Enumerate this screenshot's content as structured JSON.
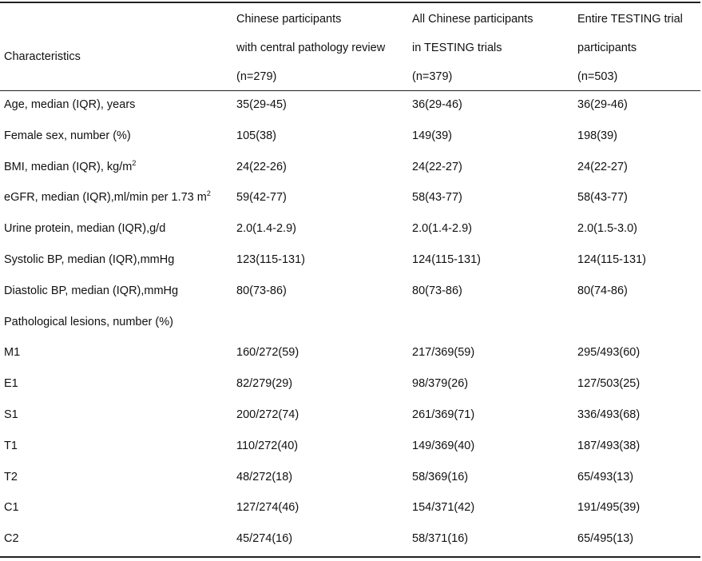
{
  "header": {
    "characteristics": "Characteristics",
    "col1": [
      "Chinese participants",
      "with central pathology review",
      "(n=279)"
    ],
    "col2": [
      "All Chinese participants",
      "in TESTING trials",
      "(n=379)"
    ],
    "col3": [
      "Entire TESTING trial",
      "participants",
      "(n=503)"
    ]
  },
  "rows": [
    {
      "label": "Age, median (IQR), years",
      "label_sup": "",
      "label_after": "",
      "c1": "35(29-45)",
      "c2": "36(29-46)",
      "c3": "36(29-46)"
    },
    {
      "label": "Female sex, number (%)",
      "label_sup": "",
      "label_after": "",
      "c1": "105(38)",
      "c2": "149(39)",
      "c3": "198(39)"
    },
    {
      "label": "BMI, median (IQR), kg/m",
      "label_sup": "2",
      "label_after": "",
      "c1": "24(22-26)",
      "c2": "24(22-27)",
      "c3": "24(22-27)"
    },
    {
      "label": "eGFR, median (IQR),ml/min per 1.73 m",
      "label_sup": "2",
      "label_after": "",
      "c1": "59(42-77)",
      "c2": "58(43-77)",
      "c3": "58(43-77)"
    },
    {
      "label": "Urine protein, median (IQR),g/d",
      "label_sup": "",
      "label_after": "",
      "c1": "2.0(1.4-2.9)",
      "c2": "2.0(1.4-2.9)",
      "c3": "2.0(1.5-3.0)"
    },
    {
      "label": "Systolic BP, median (IQR),mmHg",
      "label_sup": "",
      "label_after": "",
      "c1": "123(115-131)",
      "c2": "124(115-131)",
      "c3": "124(115-131)"
    },
    {
      "label": "Diastolic BP, median (IQR),mmHg",
      "label_sup": "",
      "label_after": "",
      "c1": "80(73-86)",
      "c2": "80(73-86)",
      "c3": "80(74-86)"
    },
    {
      "label": "Pathological lesions, number (%)",
      "label_sup": "",
      "label_after": "",
      "c1": "",
      "c2": "",
      "c3": ""
    },
    {
      "label": "M1",
      "label_sup": "",
      "label_after": "",
      "c1": "160/272(59)",
      "c2": "217/369(59)",
      "c3": "295/493(60)"
    },
    {
      "label": "E1",
      "label_sup": "",
      "label_after": "",
      "c1": "82/279(29)",
      "c2": "98/379(26)",
      "c3": "127/503(25)"
    },
    {
      "label": "S1",
      "label_sup": "",
      "label_after": "",
      "c1": "200/272(74)",
      "c2": "261/369(71)",
      "c3": "336/493(68)"
    },
    {
      "label": "T1",
      "label_sup": "",
      "label_after": "",
      "c1": "110/272(40)",
      "c2": "149/369(40)",
      "c3": "187/493(38)"
    },
    {
      "label": "T2",
      "label_sup": "",
      "label_after": "",
      "c1": "48/272(18)",
      "c2": "58/369(16)",
      "c3": "65/493(13)"
    },
    {
      "label": "C1",
      "label_sup": "",
      "label_after": "",
      "c1": "127/274(46)",
      "c2": "154/371(42)",
      "c3": "191/495(39)"
    },
    {
      "label": "C2",
      "label_sup": "",
      "label_after": "",
      "c1": "45/274(16)",
      "c2": "58/371(16)",
      "c3": "65/495(13)"
    }
  ]
}
